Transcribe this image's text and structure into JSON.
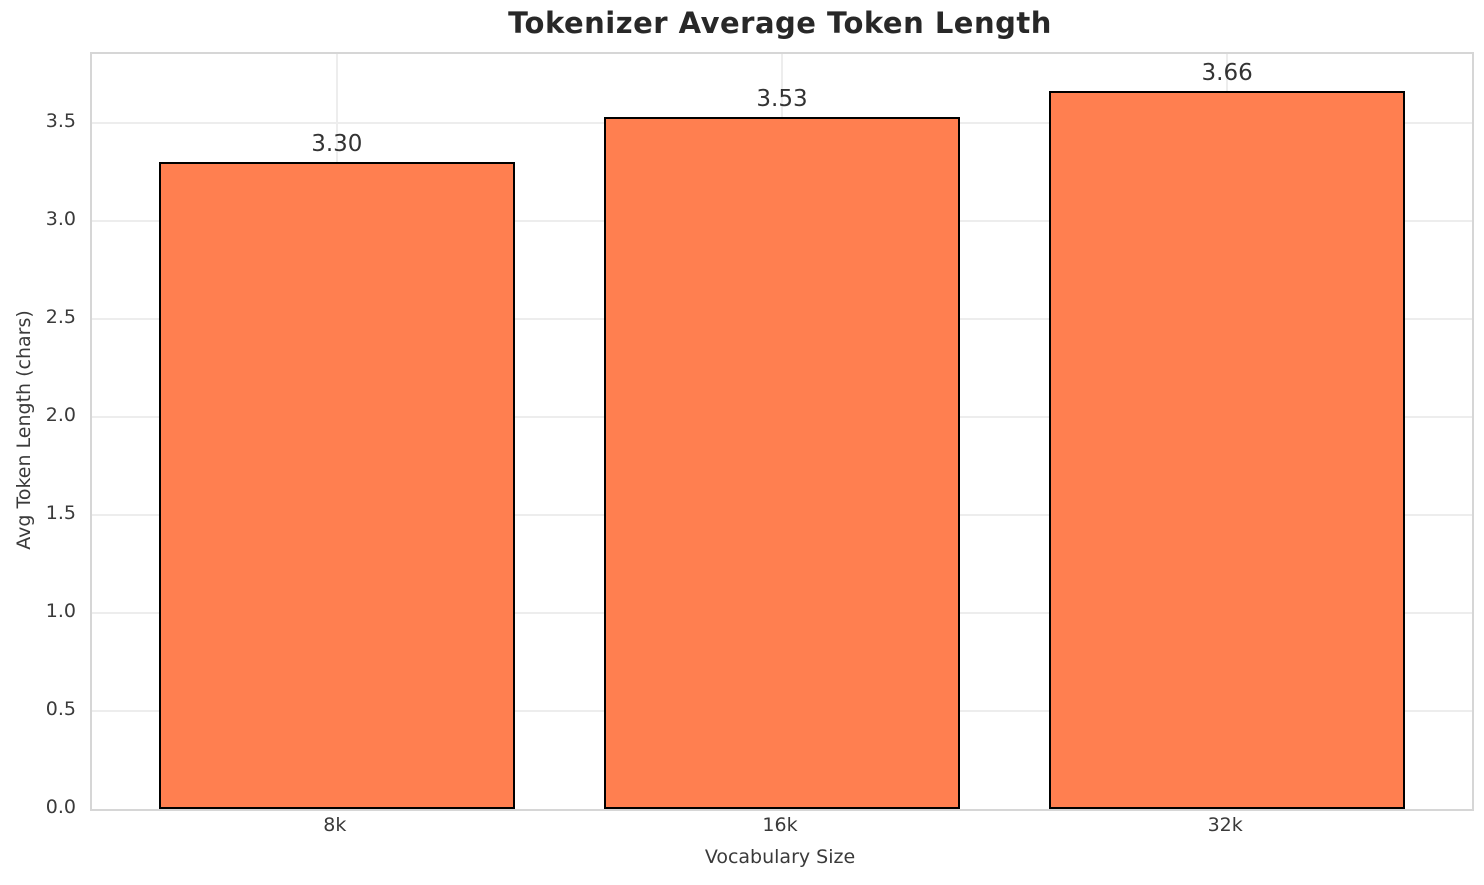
{
  "chart_data": {
    "type": "bar",
    "title": "Tokenizer Average Token Length",
    "xlabel": "Vocabulary Size",
    "ylabel": "Avg Token Length (chars)",
    "categories": [
      "8k",
      "16k",
      "32k"
    ],
    "values": [
      3.3,
      3.53,
      3.66
    ],
    "value_labels": [
      "3.30",
      "3.53",
      "3.66"
    ],
    "yticks": [
      0.0,
      0.5,
      1.0,
      1.5,
      2.0,
      2.5,
      3.0,
      3.5
    ],
    "ytick_labels": [
      "0.0",
      "0.5",
      "1.0",
      "1.5",
      "2.0",
      "2.5",
      "3.0",
      "3.5"
    ],
    "ylim": [
      0,
      3.85
    ],
    "grid": true,
    "legend_position": "none",
    "bar_color": "#ff7f50",
    "bar_edge_color": "#000000",
    "grid_color": "#ededed",
    "text_color": "#3a3a3a",
    "title_color": "#282828"
  }
}
